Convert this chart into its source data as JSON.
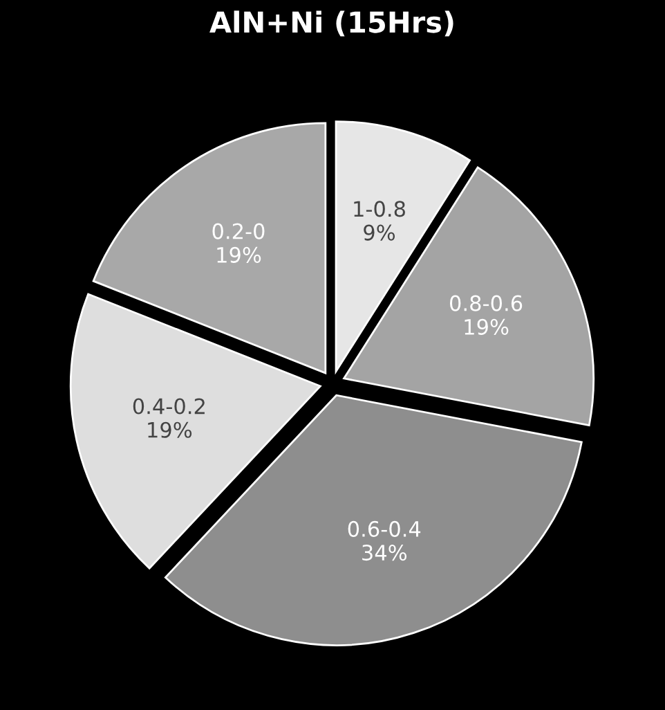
{
  "chart_data": {
    "type": "pie",
    "title": "AlN+Ni (15Hrs)",
    "categories": [
      "1-0.8",
      "0.8-0.6",
      "0.6-0.4",
      "0.4-0.2",
      "0.2-0"
    ],
    "values": [
      9,
      19,
      34,
      19,
      19
    ],
    "value_labels": [
      "9%",
      "19%",
      "34%",
      "19%",
      "19%"
    ],
    "colors": [
      "#e6e6e6",
      "#a4a4a4",
      "#8e8e8e",
      "#dedede",
      "#a8a8a8"
    ]
  }
}
